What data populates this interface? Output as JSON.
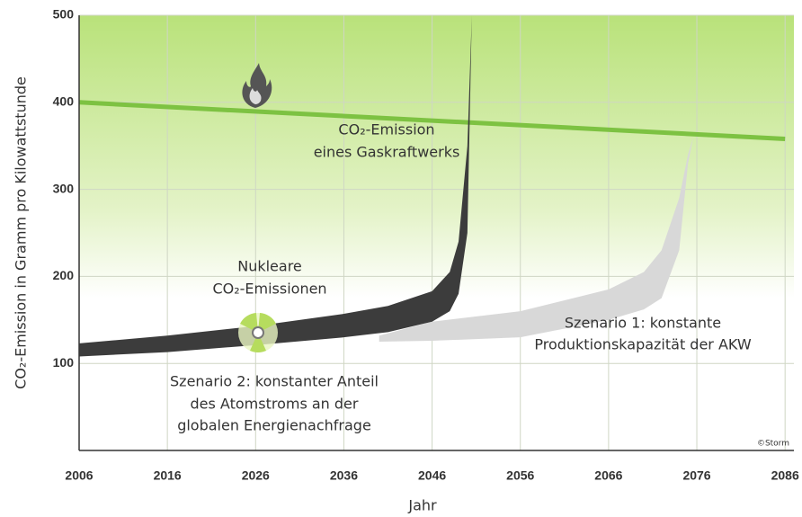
{
  "chart_data": {
    "type": "band-line",
    "xlabel": "Jahr",
    "ylabel": "CO₂-Emission in Gramm pro Kilowattstunde",
    "xlim": [
      2006,
      2087
    ],
    "ylim": [
      0,
      500
    ],
    "xticks": [
      2006,
      2016,
      2026,
      2036,
      2046,
      2056,
      2066,
      2076,
      2086
    ],
    "yticks": [
      100,
      200,
      300,
      400,
      500
    ],
    "grid": true,
    "series": [
      {
        "kind": "line",
        "color": "#7dc242",
        "x": [
          2006,
          2086
        ],
        "values": [
          400,
          358
        ]
      },
      {
        "kind": "band",
        "color": "#3c3c3c",
        "x": [
          2006,
          2016,
          2026,
          2036,
          2041,
          2046,
          2048,
          2049,
          2050,
          2050.5
        ],
        "low": [
          108,
          113,
          121,
          130,
          136,
          148,
          160,
          180,
          250,
          500
        ],
        "high": [
          123,
          132,
          143,
          157,
          166,
          183,
          205,
          240,
          350,
          500
        ]
      },
      {
        "kind": "band",
        "color": "#d8d8d8",
        "x": [
          2040,
          2046,
          2056,
          2066,
          2070,
          2072,
          2074,
          2075,
          2075.6
        ],
        "low": [
          125,
          126,
          130,
          150,
          162,
          175,
          230,
          330,
          360
        ],
        "high": [
          132,
          148,
          160,
          185,
          205,
          230,
          290,
          340,
          360
        ]
      }
    ],
    "annotations": [
      {
        "lines": [
          "CO₂-Emission",
          "eines Gaskraftwerks"
        ]
      },
      {
        "lines": [
          "Nukleare",
          "CO₂-Emissionen"
        ]
      },
      {
        "lines": [
          "Szenario 2: konstanter Anteil",
          "des Atomstroms an der",
          "globalen Energienachfrage"
        ]
      },
      {
        "lines": [
          "Szenario 1: konstante",
          "Produktionskapazität der AKW"
        ]
      }
    ],
    "credit": "©Storm"
  }
}
